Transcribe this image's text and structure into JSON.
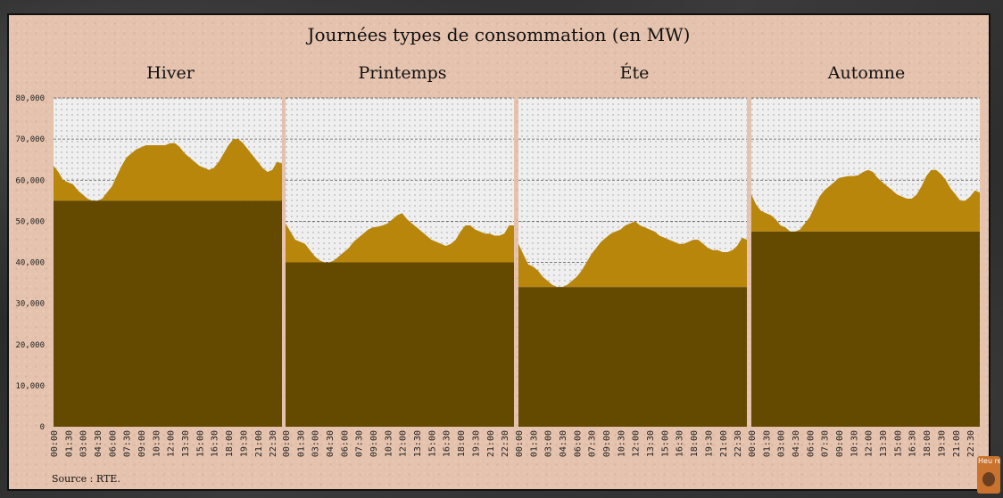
{
  "title": "Journées types de consommation (en MW)",
  "source": "Source : RTE.",
  "avatar_text": "Heu re",
  "colors": {
    "base": "#644a00",
    "variable": "#b8860b",
    "plot_bg": "#efefef",
    "grid": "#555555"
  },
  "chart_data": {
    "type": "area",
    "title": "Journées types de consommation (en MW)",
    "ylim": [
      0,
      80000
    ],
    "yticks": [
      0,
      10000,
      20000,
      30000,
      40000,
      50000,
      60000,
      70000,
      80000
    ],
    "ytick_labels": [
      "0",
      "10,000",
      "20,000",
      "30,000",
      "40,000",
      "50,000",
      "60,000",
      "70,000",
      "80,000"
    ],
    "grid": "horizontal dashed",
    "x_tick_labels": [
      "00:00",
      "01:30",
      "03:00",
      "04:30",
      "06:00",
      "07:30",
      "09:00",
      "10:30",
      "12:00",
      "13:30",
      "15:00",
      "16:30",
      "18:00",
      "19:30",
      "21:00",
      "22:30"
    ],
    "x": [
      "00:00",
      "00:30",
      "01:00",
      "01:30",
      "02:00",
      "02:30",
      "03:00",
      "03:30",
      "04:00",
      "04:30",
      "05:00",
      "05:30",
      "06:00",
      "06:30",
      "07:00",
      "07:30",
      "08:00",
      "08:30",
      "09:00",
      "09:30",
      "10:00",
      "10:30",
      "11:00",
      "11:30",
      "12:00",
      "12:30",
      "13:00",
      "13:30",
      "14:00",
      "14:30",
      "15:00",
      "15:30",
      "16:00",
      "16:30",
      "17:00",
      "17:30",
      "18:00",
      "18:30",
      "19:00",
      "19:30",
      "20:00",
      "20:30",
      "21:00",
      "21:30",
      "22:00",
      "22:30",
      "23:00",
      "23:30"
    ],
    "panels": [
      {
        "name": "Hiver",
        "base": 55000,
        "values": [
          63500,
          62000,
          60000,
          59500,
          59000,
          57500,
          56500,
          55500,
          55000,
          55000,
          55500,
          57000,
          58500,
          61000,
          63500,
          65500,
          66500,
          67500,
          68000,
          68500,
          68500,
          68500,
          68500,
          68500,
          69000,
          69000,
          68000,
          66500,
          65500,
          64500,
          63500,
          63000,
          62500,
          63000,
          64500,
          66500,
          68500,
          70000,
          70000,
          69000,
          67500,
          66000,
          64500,
          63000,
          62000,
          62500,
          64500,
          64000
        ]
      },
      {
        "name": "Printemps",
        "base": 40000,
        "values": [
          49500,
          47500,
          45500,
          45000,
          44500,
          43000,
          41500,
          40500,
          40000,
          40000,
          40500,
          41500,
          42500,
          43500,
          45000,
          46000,
          47000,
          48000,
          48500,
          48700,
          49000,
          49500,
          50500,
          51500,
          52000,
          50500,
          49500,
          48500,
          47500,
          46500,
          45500,
          45000,
          44500,
          44000,
          44500,
          45500,
          47500,
          49000,
          49000,
          48000,
          47500,
          47000,
          47000,
          46500,
          46500,
          47000,
          49000,
          49000
        ]
      },
      {
        "name": "Éte",
        "base": 34000,
        "values": [
          44500,
          42000,
          39500,
          39000,
          38000,
          36500,
          35500,
          34500,
          34000,
          34000,
          34500,
          35500,
          36500,
          38000,
          40000,
          42000,
          43500,
          45000,
          46000,
          47000,
          47500,
          48000,
          49000,
          49500,
          50000,
          49000,
          48500,
          48000,
          47500,
          46500,
          46000,
          45500,
          45000,
          44500,
          44500,
          45000,
          45500,
          45500,
          44500,
          43500,
          43000,
          43000,
          42500,
          42500,
          43000,
          44000,
          46000,
          45500
        ]
      },
      {
        "name": "Automne",
        "base": 47500,
        "values": [
          56500,
          54000,
          52500,
          52000,
          51500,
          50500,
          49000,
          48500,
          47500,
          47500,
          48000,
          49500,
          51000,
          53500,
          56000,
          57500,
          58500,
          59500,
          60500,
          60800,
          61000,
          61000,
          61200,
          62000,
          62500,
          62000,
          60500,
          59500,
          58500,
          57500,
          56500,
          56000,
          55500,
          55500,
          56500,
          58500,
          61000,
          62500,
          62500,
          61500,
          60000,
          58000,
          56500,
          55000,
          55000,
          56000,
          57500,
          57000
        ]
      }
    ]
  }
}
